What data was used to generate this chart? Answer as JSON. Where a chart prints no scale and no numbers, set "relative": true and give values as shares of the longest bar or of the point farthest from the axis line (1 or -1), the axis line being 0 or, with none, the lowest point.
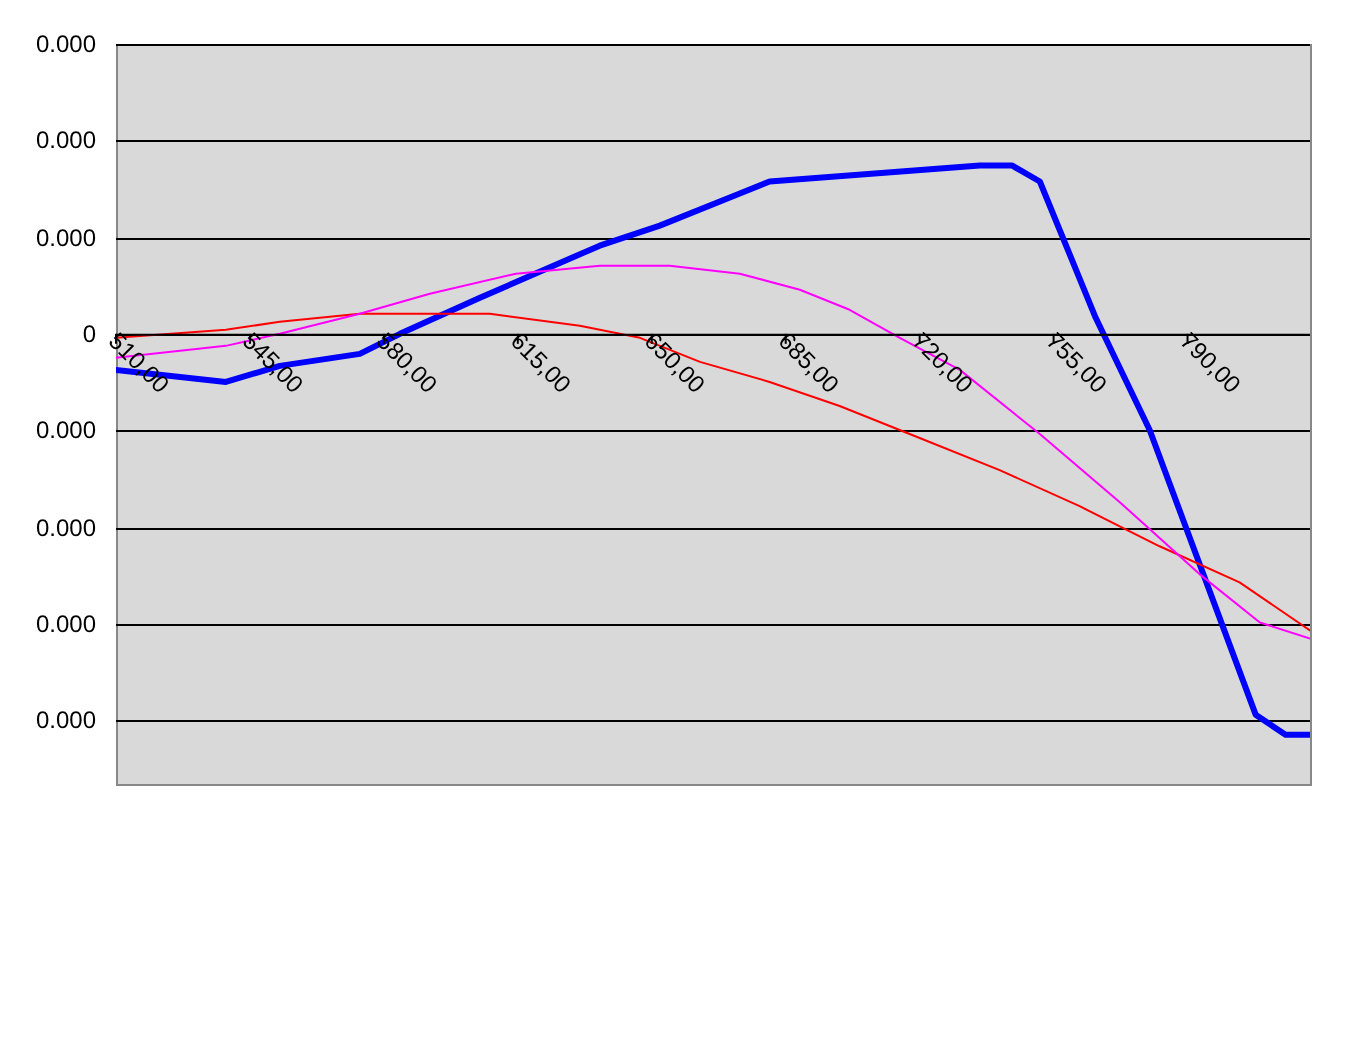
{
  "chart_data": {
    "type": "line",
    "relative": true,
    "grid": "y",
    "legend": false,
    "marker": "none",
    "line_style": "solid",
    "xlim": [
      510,
      822
    ],
    "xticks": [
      {
        "value": 510,
        "label": "510,00"
      },
      {
        "value": 545,
        "label": "545,00"
      },
      {
        "value": 580,
        "label": "580,00"
      },
      {
        "value": 615,
        "label": "615,00"
      },
      {
        "value": 650,
        "label": "650,00"
      },
      {
        "value": 685,
        "label": "685,00"
      },
      {
        "value": 720,
        "label": "720,00"
      },
      {
        "value": 755,
        "label": "755,00"
      },
      {
        "value": 790,
        "label": "790,00"
      }
    ],
    "annotations": [
      "0.000",
      "0.000",
      "0.000",
      "0",
      "0.000",
      "0.000",
      "0.000",
      "0.000"
    ],
    "series": [
      {
        "color": "#ff00ff",
        "x": [
          510,
          538.7,
          552.8,
          573.7,
          592,
          614.5,
          636.4,
          654.7,
          673,
          688.7,
          701.7,
          714.8,
          730.5,
          751.4,
          772.3,
          793.2,
          808.9,
          822
        ],
        "values": [
          -0.06,
          -0.03,
          0,
          0.05,
          0.1,
          0.15,
          0.17,
          0.17,
          0.15,
          0.11,
          0.06,
          -0.01,
          -0.09,
          -0.25,
          -0.42,
          -0.6,
          -0.72,
          -0.76
        ]
      },
      {
        "color": "#ff0000",
        "x": [
          510,
          538.7,
          552.8,
          573.7,
          589.4,
          607.7,
          631.2,
          646.9,
          662.6,
          680.8,
          699.1,
          720,
          740.9,
          761.8,
          782.7,
          803.6,
          822
        ],
        "values": [
          -0.01,
          0.01,
          0.03,
          0.05,
          0.05,
          0.05,
          0.02,
          -0.01,
          -0.07,
          -0.12,
          -0.18,
          -0.26,
          -0.34,
          -0.43,
          -0.53,
          -0.62,
          -0.74
        ]
      },
      {
        "color": "#0000ff",
        "x": [
          510,
          538.7,
          552.8,
          573.7,
          584.2,
          605.1,
          636.4,
          652.1,
          673,
          680.8,
          735.7,
          744.1,
          751.4,
          766,
          780.1,
          807.8,
          815.6,
          822
        ],
        "values": [
          -0.09,
          -0.12,
          -0.08,
          -0.05,
          0,
          0.09,
          0.22,
          0.27,
          0.35,
          0.38,
          0.42,
          0.42,
          0.38,
          0.04,
          -0.24,
          -0.95,
          -1,
          -1
        ]
      }
    ]
  }
}
